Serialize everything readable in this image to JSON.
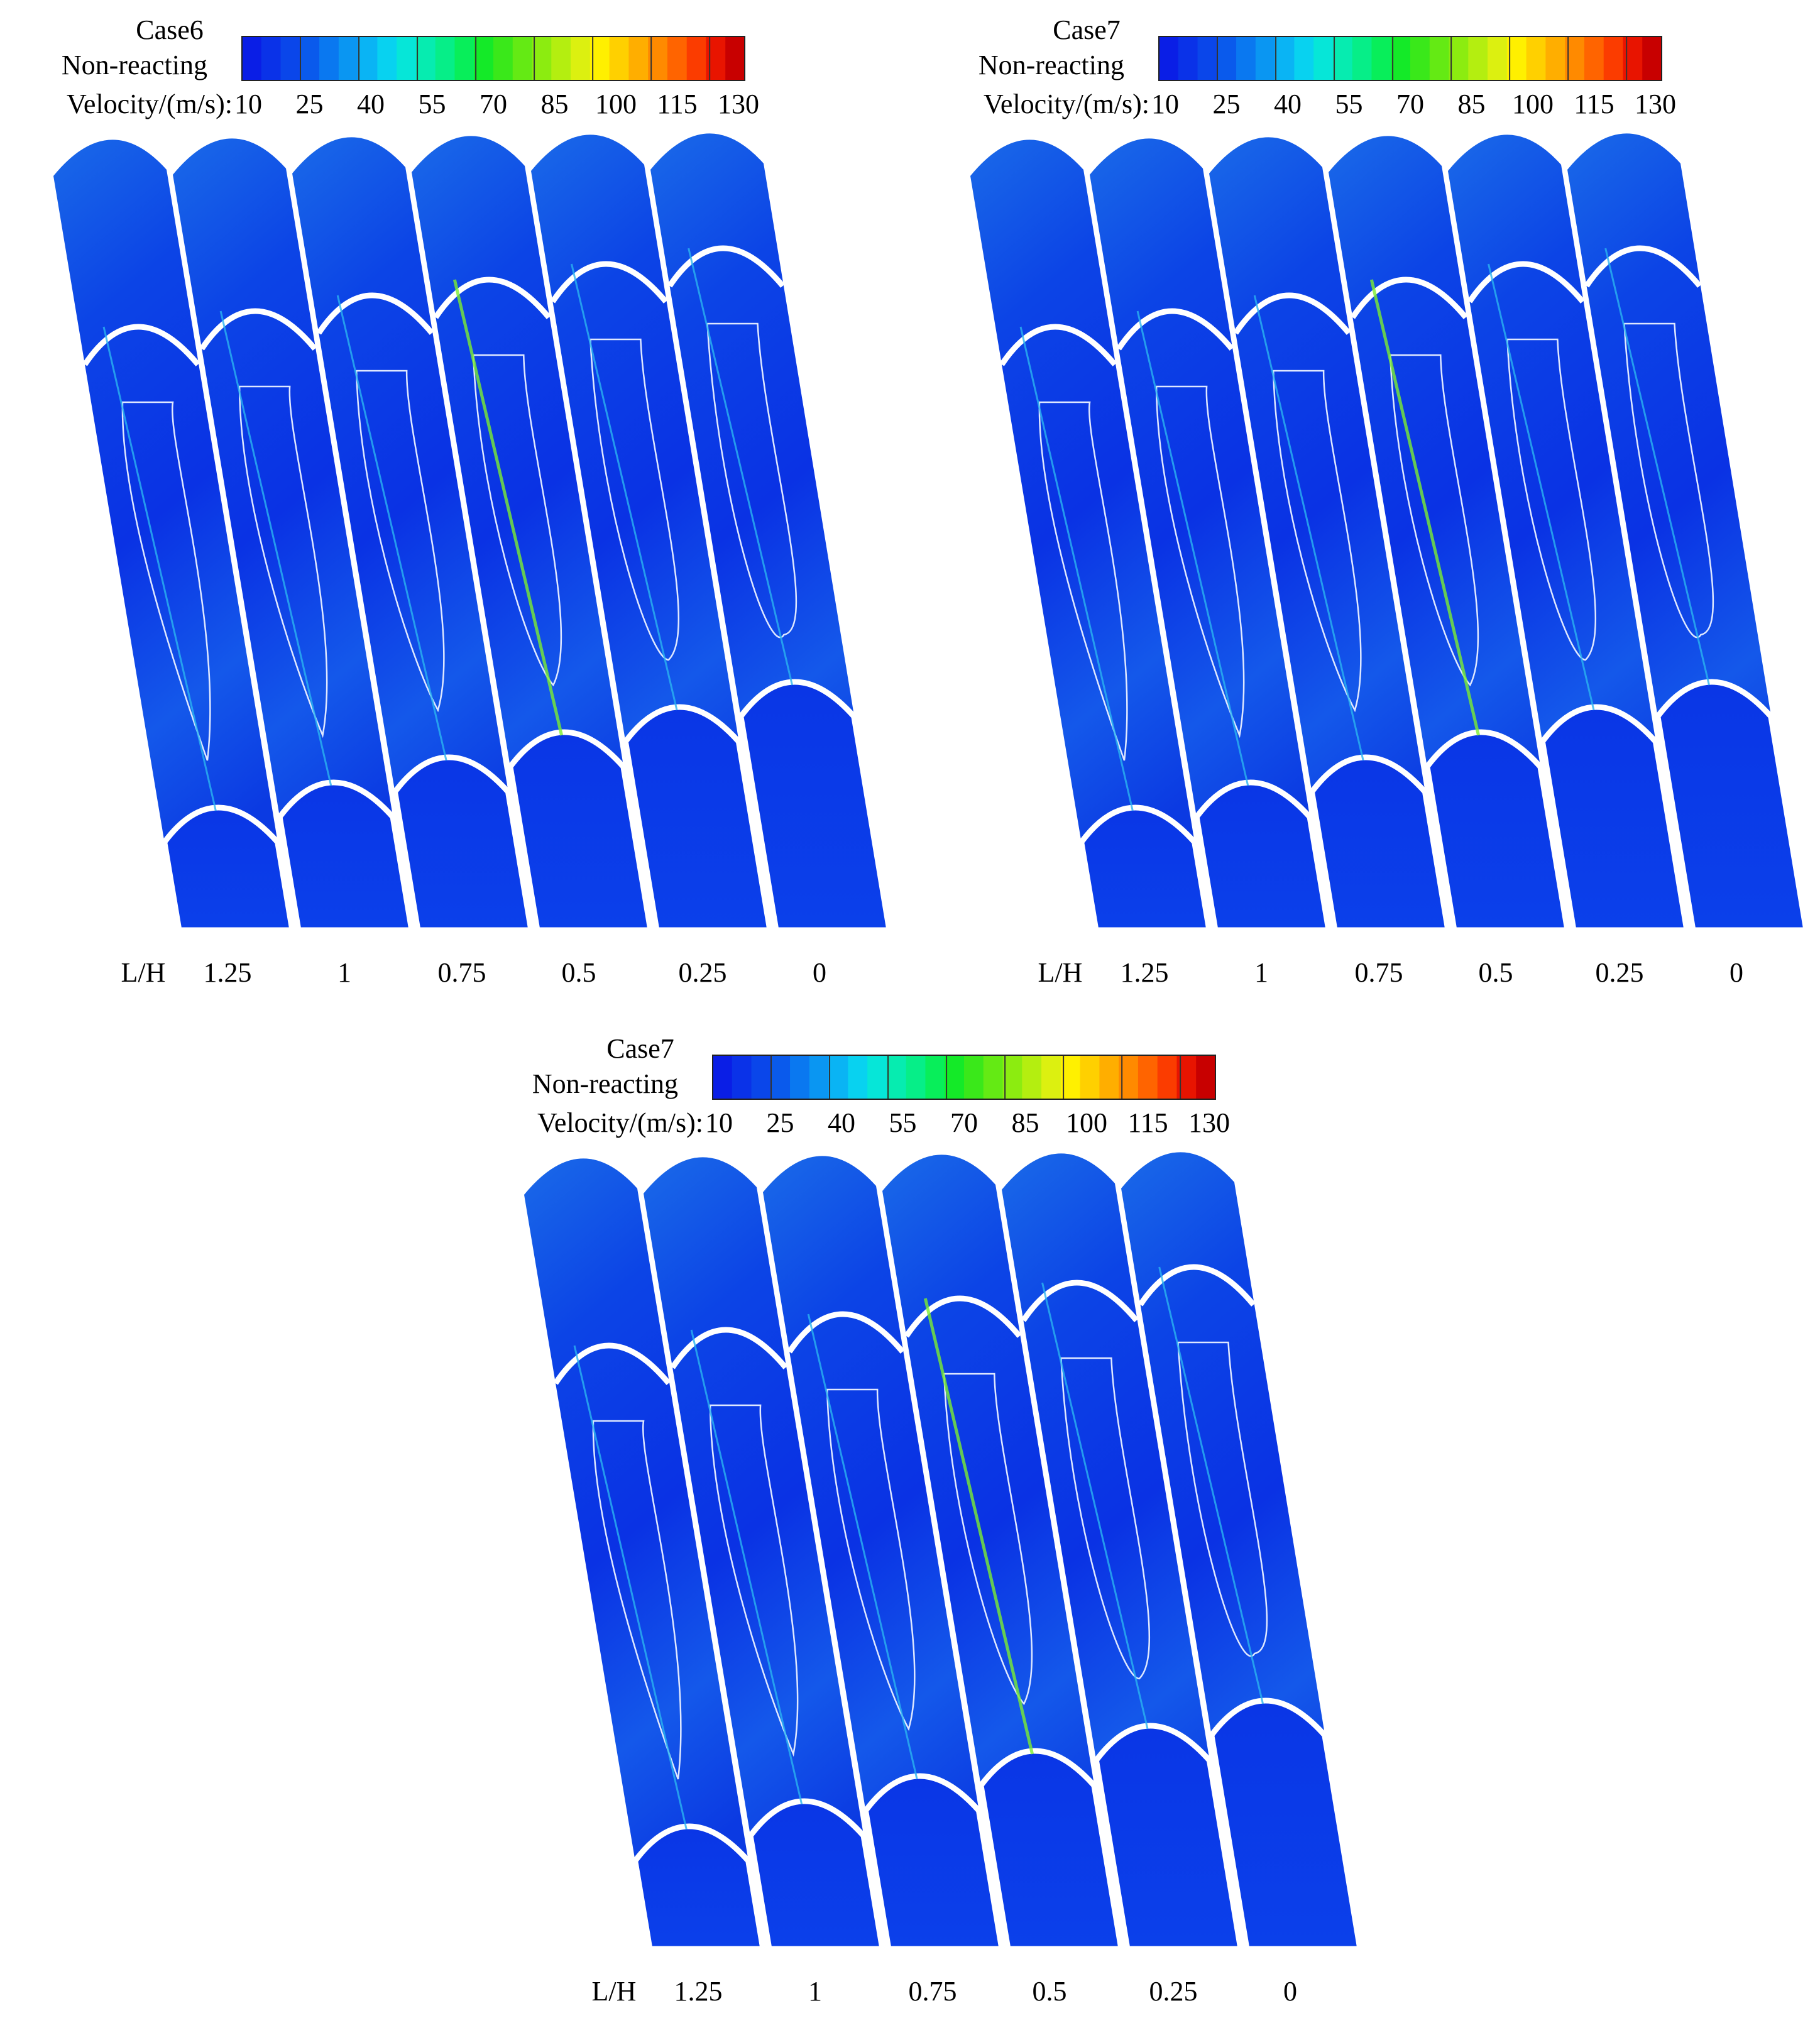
{
  "panels": [
    {
      "case": "Case6",
      "condition": "Non-reacting",
      "quantity": "Velocity/(m/s):",
      "colorbar_ticks": [
        10,
        25,
        40,
        55,
        70,
        85,
        100,
        115,
        130
      ],
      "axis_label": "L/H",
      "slice_labels": [
        "1.25",
        "1",
        "0.75",
        "0.5",
        "0.25",
        "0"
      ]
    },
    {
      "case": "Case7",
      "condition": "Non-reacting",
      "quantity": "Velocity/(m/s):",
      "colorbar_ticks": [
        10,
        25,
        40,
        55,
        70,
        85,
        100,
        115,
        130
      ],
      "axis_label": "L/H",
      "slice_labels": [
        "1.25",
        "1",
        "0.75",
        "0.5",
        "0.25",
        "0"
      ]
    },
    {
      "case": "Case7",
      "condition": "Non-reacting",
      "quantity": "Velocity/(m/s):",
      "colorbar_ticks": [
        10,
        25,
        40,
        55,
        70,
        85,
        100,
        115,
        130
      ],
      "axis_label": "L/H",
      "slice_labels": [
        "1.25",
        "1",
        "0.75",
        "0.5",
        "0.25",
        "0"
      ]
    }
  ]
}
